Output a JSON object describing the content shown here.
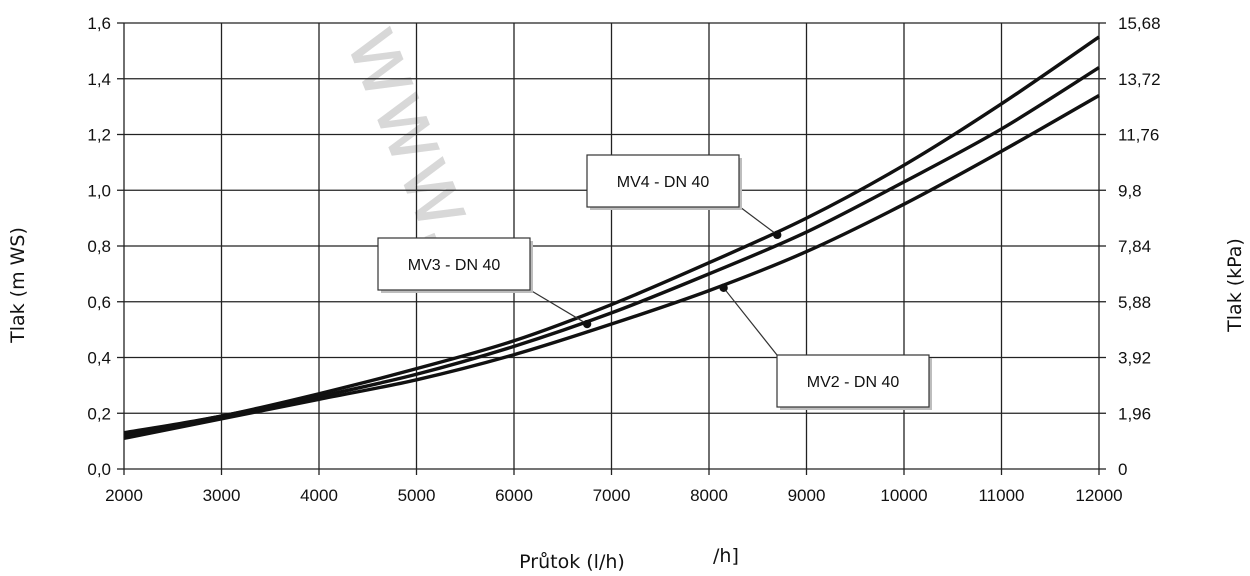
{
  "chart_data": {
    "type": "line",
    "xlabel": "Průtok (l/h)",
    "xlabel_fragment": "/h]",
    "ylabel": "Tlak (m WS)",
    "ylabel_right": "Tlak (kPa)",
    "xlim": [
      2000,
      12000
    ],
    "ylim": [
      0,
      1.6
    ],
    "grid": true,
    "x_ticks": [
      "2000",
      "3000",
      "4000",
      "5000",
      "6000",
      "7000",
      "8000",
      "9000",
      "10000",
      "11000",
      "12000"
    ],
    "y_ticks": [
      "0,0",
      "0,2",
      "0,4",
      "0,6",
      "0,8",
      "1,0",
      "1,2",
      "1,4",
      "1,6"
    ],
    "y_ticks_right": [
      "0",
      "1,96",
      "3,92",
      "5,88",
      "7,84",
      "9,8",
      "11,76",
      "13,72",
      "15,68"
    ],
    "x": [
      2000,
      3000,
      4000,
      5000,
      6000,
      7000,
      8000,
      9000,
      10000,
      11000,
      12000
    ],
    "series": [
      {
        "name": "MV4 - DN 40",
        "values": [
          0.13,
          0.19,
          0.27,
          0.36,
          0.46,
          0.59,
          0.74,
          0.9,
          1.09,
          1.31,
          1.55
        ],
        "marker_x": 8700,
        "marker_y": 0.84
      },
      {
        "name": "MV3 - DN 40",
        "values": [
          0.12,
          0.19,
          0.26,
          0.34,
          0.44,
          0.56,
          0.7,
          0.85,
          1.03,
          1.22,
          1.44
        ],
        "marker_x": 6750,
        "marker_y": 0.52
      },
      {
        "name": "MV2 - DN 40",
        "values": [
          0.11,
          0.18,
          0.25,
          0.32,
          0.41,
          0.52,
          0.64,
          0.78,
          0.95,
          1.14,
          1.34
        ],
        "marker_x": 8150,
        "marker_y": 0.65
      }
    ],
    "annotations": [
      {
        "text": "MV4 - DN 40",
        "series": 0
      },
      {
        "text": "MV3 - DN 40",
        "series": 1
      },
      {
        "text": "MV2 - DN 40",
        "series": 2
      }
    ],
    "watermark": "www.",
    "line_color": "#111111"
  }
}
